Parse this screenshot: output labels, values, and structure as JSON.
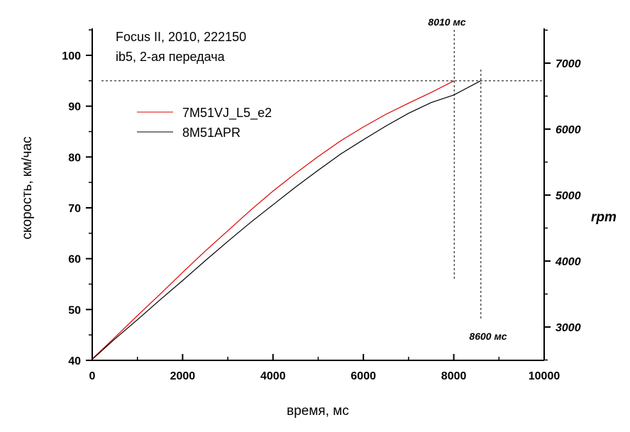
{
  "chart_data": {
    "type": "line",
    "annotation_title": [
      "Focus II, 2010, 222150",
      "ib5, 2-ая передача"
    ],
    "xlabel": "время, мс",
    "ylabel": "скорость, км/час",
    "y2label": "rpm",
    "xlim": [
      0,
      10000
    ],
    "ylim": [
      40,
      105
    ],
    "y2lim": [
      2500,
      7500
    ],
    "x_ticks": [
      0,
      2000,
      4000,
      6000,
      8000,
      10000
    ],
    "y_ticks": [
      40,
      50,
      60,
      70,
      80,
      90,
      100
    ],
    "y2_ticks": [
      3000,
      4000,
      5000,
      6000,
      7000
    ],
    "x_tick_labels": [
      "0",
      "2000",
      "4000",
      "6000",
      "8000",
      "10000"
    ],
    "y_tick_labels": [
      "40",
      "50",
      "60",
      "70",
      "80",
      "90",
      "100"
    ],
    "y2_tick_labels": [
      "3000",
      "4000",
      "5000",
      "6000",
      "7000"
    ],
    "grid": false,
    "legend_position": "upper-left",
    "series": [
      {
        "name": "7M51VJ_L5_e2",
        "color": "#e00000",
        "x": [
          0,
          500,
          1000,
          1500,
          2000,
          2500,
          3000,
          3500,
          4000,
          4500,
          5000,
          5500,
          6000,
          6500,
          7000,
          7500,
          8010
        ],
        "y": [
          40.3,
          44.5,
          48.8,
          53.0,
          57.3,
          61.5,
          65.5,
          69.5,
          73.3,
          76.8,
          80.1,
          83.2,
          85.9,
          88.4,
          90.6,
          92.7,
          95.0
        ]
      },
      {
        "name": "8M51APR",
        "color": "#000000",
        "x": [
          0,
          500,
          1000,
          1500,
          2000,
          2500,
          3000,
          3500,
          4000,
          4500,
          5000,
          5500,
          6000,
          6500,
          7000,
          7500,
          8000,
          8600
        ],
        "y": [
          40.2,
          44.2,
          48.0,
          51.9,
          55.7,
          59.6,
          63.4,
          67.1,
          70.6,
          74.1,
          77.4,
          80.6,
          83.4,
          86.1,
          88.6,
          90.7,
          92.2,
          95.0
        ]
      }
    ],
    "reference_lines": {
      "horizontal_y": 95,
      "vertical_x": [
        8010,
        8600
      ],
      "labels": [
        "8010 мс",
        "8600 мс"
      ]
    }
  }
}
